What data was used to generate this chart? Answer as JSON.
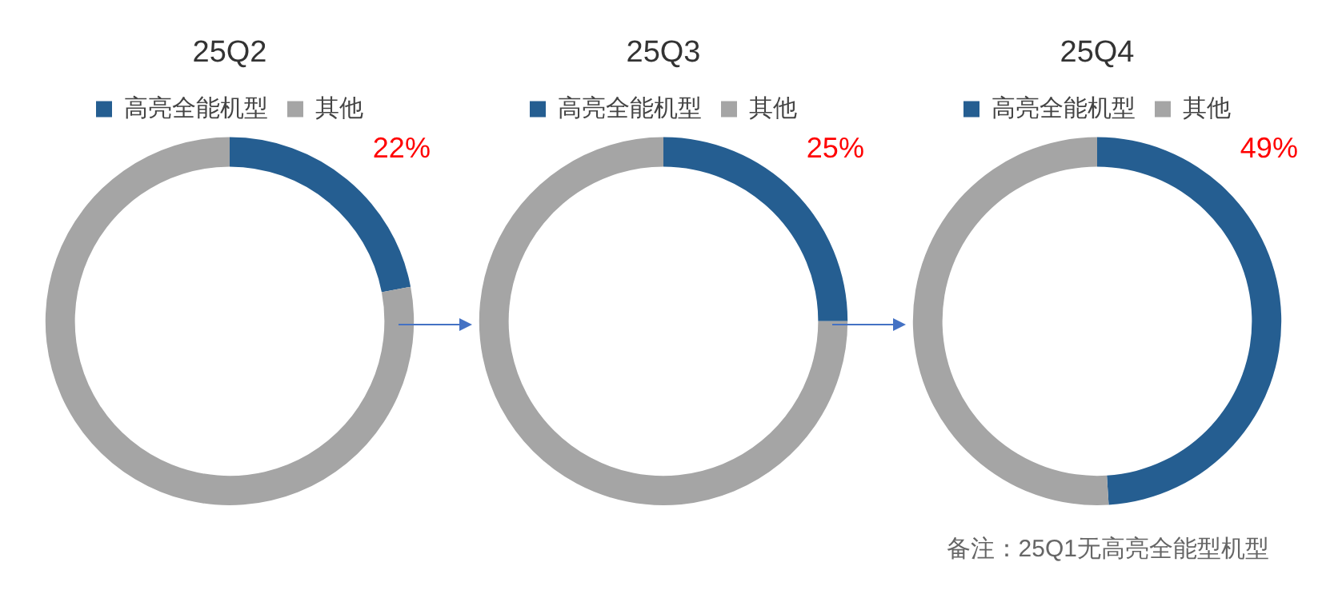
{
  "chart_data": [
    {
      "type": "donut",
      "title": "25Q2",
      "categories": [
        "高亮全能机型",
        "其他"
      ],
      "values": [
        22,
        78
      ],
      "colors": [
        "#255e91",
        "#a5a5a5"
      ],
      "value_labels": [
        "22%",
        null
      ],
      "legend": "top"
    },
    {
      "type": "donut",
      "title": "25Q3",
      "categories": [
        "高亮全能机型",
        "其他"
      ],
      "values": [
        25,
        75
      ],
      "colors": [
        "#255e91",
        "#a5a5a5"
      ],
      "value_labels": [
        "25%",
        null
      ],
      "legend": "top"
    },
    {
      "type": "donut",
      "title": "25Q4",
      "categories": [
        "高亮全能机型",
        "其他"
      ],
      "values": [
        49,
        51
      ],
      "colors": [
        "#255e91",
        "#a5a5a5"
      ],
      "value_labels": [
        "49%",
        null
      ],
      "legend": "top",
      "annotations": [
        "备注：25Q1无高亮全能型机型"
      ]
    }
  ]
}
